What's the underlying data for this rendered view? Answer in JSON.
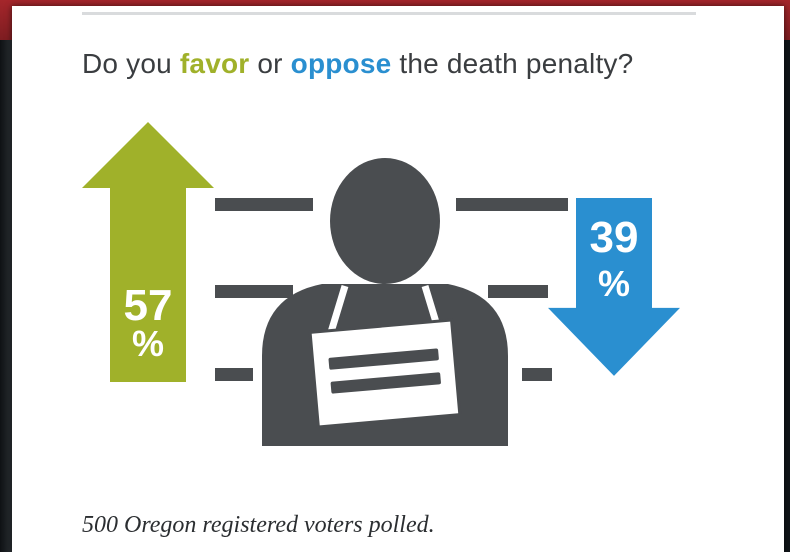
{
  "question": {
    "before": "Do you ",
    "favor": "favor",
    "middle": " or ",
    "oppose": "oppose",
    "after": " the death penalty?"
  },
  "footnote": "500 Oregon registered voters polled.",
  "chart_data": {
    "type": "bar",
    "categories": [
      "favor",
      "oppose"
    ],
    "values": [
      57,
      39
    ],
    "value_labels": [
      "57",
      "39"
    ],
    "unit_label": "%",
    "colors": {
      "favor": "#a0b12a",
      "oppose": "#2a8fd0",
      "figure": "#4a4d50"
    }
  }
}
